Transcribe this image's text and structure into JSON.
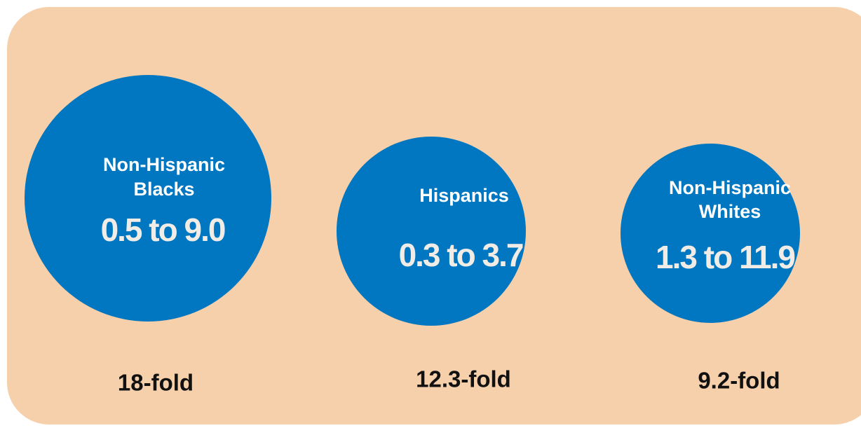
{
  "groups": [
    {
      "label_lines": [
        "Non-Hispanic",
        "Blacks"
      ],
      "range": "0.5 to 9.0",
      "fold": "18-fold"
    },
    {
      "label_lines": [
        "Hispanics"
      ],
      "range": "0.3 to 3.7",
      "fold": "12.3-fold"
    },
    {
      "label_lines": [
        "Non-Hispanic",
        "Whites"
      ],
      "range": "1.3 to 11.9",
      "fold": "9.2-fold"
    }
  ]
}
